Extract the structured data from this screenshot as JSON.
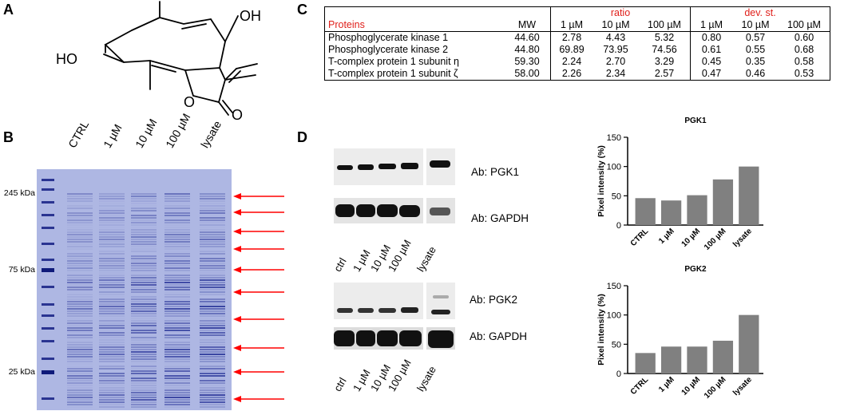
{
  "panels": {
    "a": {
      "letter": "A"
    },
    "b": {
      "letter": "B"
    },
    "c": {
      "letter": "C"
    },
    "d": {
      "letter": "D"
    }
  },
  "structure": {
    "oh_top": "OH",
    "oh_left": "HO",
    "o_ring": "O",
    "o_carbonyl": "O"
  },
  "gel": {
    "lanes": [
      "CTRL",
      "1 µM",
      "10 µM",
      "100 µM",
      "lysate"
    ],
    "markers": [
      "245 kDa",
      "75 kDa",
      "25 kDa"
    ],
    "arrow_color": "#ff0000",
    "gel_color": "#aeb7e3"
  },
  "table": {
    "header_col": "Proteins",
    "mw_label": "MW",
    "ratio_label": "ratio",
    "dev_label": "dev. st.",
    "concentrations": [
      "1 µM",
      "10 µM",
      "100 µM"
    ],
    "rows": [
      {
        "protein": "Phosphoglycerate  kinase 1",
        "mw": "44.60",
        "ratio": [
          "2.78",
          "4.43",
          "5.32"
        ],
        "dev": [
          "0.80",
          "0.57",
          "0.60"
        ]
      },
      {
        "protein": "Phosphoglycerate  kinase 2",
        "mw": "44.80",
        "ratio": [
          "69.89",
          "73.95",
          "74.56"
        ],
        "dev": [
          "0.61",
          "0.55",
          "0.68"
        ]
      },
      {
        "protein": "T-complex  protein 1 subunit η",
        "mw": "59.30",
        "ratio": [
          "2.24",
          "2.70",
          "3.29"
        ],
        "dev": [
          "0.45",
          "0.35",
          "0.58"
        ]
      },
      {
        "protein": "T-complex  protein 1 subunit ζ",
        "mw": "58.00",
        "ratio": [
          "2.26",
          "2.34",
          "2.57"
        ],
        "dev": [
          "0.47",
          "0.46",
          "0.53"
        ]
      }
    ],
    "accent_color": "#e0201b"
  },
  "blots": {
    "pgk1": {
      "ab_label": "Ab: PGK1",
      "loading_label": "Ab: GAPDH"
    },
    "pgk2": {
      "ab_label": "Ab: PGK2",
      "loading_label": "Ab: GAPDH"
    },
    "lanes": [
      "ctrl",
      "1 µM",
      "10 µM",
      "100 µM",
      "lysate"
    ]
  },
  "chart_data": [
    {
      "type": "bar",
      "title": "PGK1",
      "ylabel": "Pixel intensity (%)",
      "categories": [
        "CTRL",
        "1 µM",
        "10 µM",
        "100 µM",
        "lysate"
      ],
      "values": [
        46,
        42,
        51,
        78,
        100
      ],
      "ylim": [
        0,
        150
      ],
      "yticks": [
        "0",
        "50",
        "100",
        "150"
      ],
      "bar_color": "#808080"
    },
    {
      "type": "bar",
      "title": "PGK2",
      "ylabel": "Pixel intensity (%)",
      "categories": [
        "CTRL",
        "1 µM",
        "10 µM",
        "100 µM",
        "lysate"
      ],
      "values": [
        35,
        46,
        46,
        56,
        100
      ],
      "ylim": [
        0,
        150
      ],
      "yticks": [
        "0",
        "50",
        "100",
        "150"
      ],
      "bar_color": "#808080"
    }
  ]
}
